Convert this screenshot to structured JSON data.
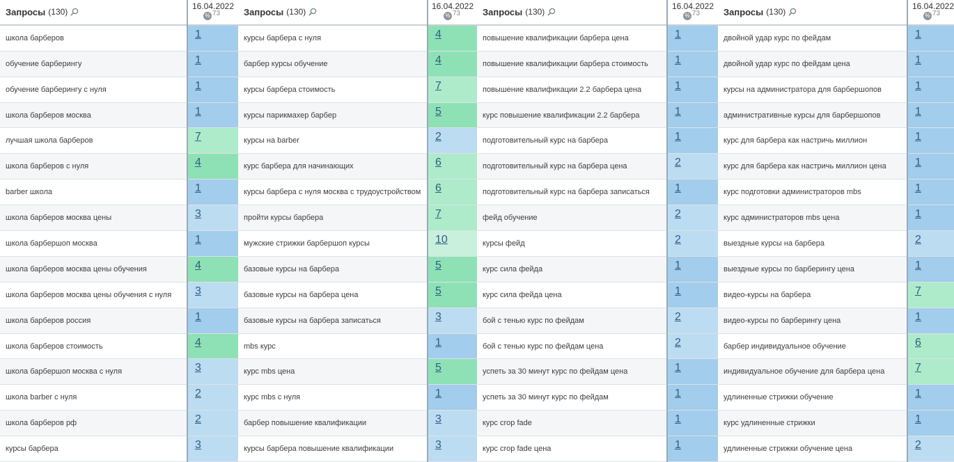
{
  "header": {
    "queries_label": "Запросы",
    "queries_count": "(130)",
    "date": "16.04.2022",
    "percent_icon": "%",
    "percent_value": "73"
  },
  "colors": {
    "pos_1": "#a2cdec",
    "pos_2_3": "#bcdcf1",
    "pos_4_5": "#8ee1b5",
    "pos_6_7": "#aeebca",
    "pos_10": "#c9f0dc"
  },
  "columns": [
    {
      "rows": [
        {
          "query": "школа барберов",
          "pos": "1"
        },
        {
          "query": "обучение барберингу",
          "pos": "1"
        },
        {
          "query": "обучение барберингу с нуля",
          "pos": "1"
        },
        {
          "query": "школа барберов москва",
          "pos": "1"
        },
        {
          "query": "лучшая школа барберов",
          "pos": "7"
        },
        {
          "query": "школа барберов с нуля",
          "pos": "4"
        },
        {
          "query": "barber школа",
          "pos": "1"
        },
        {
          "query": "школа барберов москва цены",
          "pos": "3"
        },
        {
          "query": "школа барбершоп москва",
          "pos": "1"
        },
        {
          "query": "школа барберов москва цены обучения",
          "pos": "4"
        },
        {
          "query": "школа барберов москва цены обучения с нуля",
          "pos": "3"
        },
        {
          "query": "школа барберов россия",
          "pos": "1"
        },
        {
          "query": "школа барберов стоимость",
          "pos": "4"
        },
        {
          "query": "школа барбершоп москва с нуля",
          "pos": "3"
        },
        {
          "query": "школа barber с нуля",
          "pos": "2"
        },
        {
          "query": "школа барберов рф",
          "pos": "2"
        },
        {
          "query": "курсы барбера",
          "pos": "3"
        }
      ]
    },
    {
      "rows": [
        {
          "query": "курсы барбера с нуля",
          "pos": "4"
        },
        {
          "query": "барбер курсы обучение",
          "pos": "4"
        },
        {
          "query": "курсы барбера стоимость",
          "pos": "7"
        },
        {
          "query": "курсы парикмахер барбер",
          "pos": "5"
        },
        {
          "query": "курсы на barber",
          "pos": "2"
        },
        {
          "query": "курс барбера для начинающих",
          "pos": "6"
        },
        {
          "query": "курсы барбера с нуля москва с трудоустройством",
          "pos": "6"
        },
        {
          "query": "пройти курсы барбера",
          "pos": "7"
        },
        {
          "query": "мужские стрижки барбершоп курсы",
          "pos": "10"
        },
        {
          "query": "базовые курсы на барбера",
          "pos": "5"
        },
        {
          "query": "базовые курсы на барбера цена",
          "pos": "5"
        },
        {
          "query": "базовые курсы на барбера записаться",
          "pos": "3"
        },
        {
          "query": "mbs курс",
          "pos": "1"
        },
        {
          "query": "курс mbs цена",
          "pos": "5"
        },
        {
          "query": "курс mbs с нуля",
          "pos": "1"
        },
        {
          "query": "барбер повышение квалификации",
          "pos": "3"
        },
        {
          "query": "курсы барбера повышение квалификации",
          "pos": "3"
        }
      ]
    },
    {
      "rows": [
        {
          "query": "повышение квалификации барбера цена",
          "pos": "1"
        },
        {
          "query": "повышение квалификации барбера стоимость",
          "pos": "1"
        },
        {
          "query": "повышение квалификации 2.2 барбера цена",
          "pos": "1"
        },
        {
          "query": "курс повышение квалификации 2.2 барбера",
          "pos": "1"
        },
        {
          "query": "подготовительный курс на барбера",
          "pos": "1"
        },
        {
          "query": "подготовительный курс на барбера цена",
          "pos": "2"
        },
        {
          "query": "подготовительный курс на барбера записаться",
          "pos": "1"
        },
        {
          "query": "фейд обучение",
          "pos": "2"
        },
        {
          "query": "курсы фейд",
          "pos": "2"
        },
        {
          "query": "курс сила фейда",
          "pos": "1"
        },
        {
          "query": "курс сила фейда цена",
          "pos": "1"
        },
        {
          "query": "бой с тенью курс по фейдам",
          "pos": "2"
        },
        {
          "query": "бой с тенью курс по фейдам цена",
          "pos": "2"
        },
        {
          "query": "успеть за 30 минут курс по фейдам цена",
          "pos": "1"
        },
        {
          "query": "успеть за 30 минут курс по фейдам",
          "pos": "1"
        },
        {
          "query": "курс crop fade",
          "pos": "1"
        },
        {
          "query": "курс crop fade цена",
          "pos": "1"
        }
      ]
    },
    {
      "rows": [
        {
          "query": "двойной удар курс по фейдам",
          "pos": "1"
        },
        {
          "query": "двойной удар курс по фейдам цена",
          "pos": "1"
        },
        {
          "query": "курсы на администратора для барбершопов",
          "pos": "1"
        },
        {
          "query": "административные курсы для барбершопов",
          "pos": "1"
        },
        {
          "query": "курс для барбера как настричь миллион",
          "pos": "1"
        },
        {
          "query": "курс для барбера как настричь миллион цена",
          "pos": "1"
        },
        {
          "query": "курс подготовки администраторов mbs",
          "pos": "1"
        },
        {
          "query": "курс администраторов mbs цена",
          "pos": "1"
        },
        {
          "query": "выездные курсы на барбера",
          "pos": "2"
        },
        {
          "query": "выездные курсы по барберингу цена",
          "pos": "1"
        },
        {
          "query": "видео-курсы на барбера",
          "pos": "7"
        },
        {
          "query": "видео-курсы по барберингу цена",
          "pos": "1"
        },
        {
          "query": "барбер индивидуальное обучение",
          "pos": "6"
        },
        {
          "query": "индивидуальное обучение для барбера цена",
          "pos": "7"
        },
        {
          "query": "удлиненные стрижки обучение",
          "pos": "1"
        },
        {
          "query": "курс удлиненные стрижки",
          "pos": "1"
        },
        {
          "query": "удлиненные стрижки обучение цена",
          "pos": "2"
        }
      ]
    }
  ]
}
